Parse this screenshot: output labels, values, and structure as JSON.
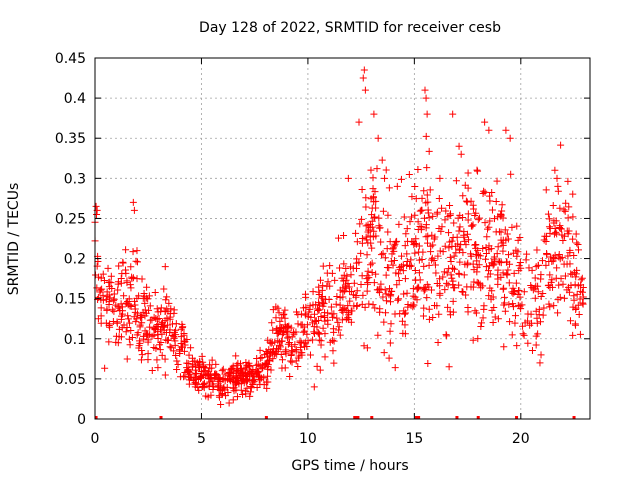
{
  "chart_data": {
    "type": "scatter",
    "title": "Day 128 of 2022, SRMTID for receiver cesb",
    "xlabel": "GPS time / hours",
    "ylabel": "SRMTID / TECUs",
    "xlim": [
      0,
      23.25
    ],
    "ylim": [
      0,
      0.45
    ],
    "grid": true,
    "marker": "+",
    "color": "#ff0000",
    "x_ticks": [
      0,
      5,
      10,
      15,
      20
    ],
    "x_tick_labels": [
      "0",
      "5",
      "10",
      "15",
      "20"
    ],
    "y_ticks": [
      0,
      0.05,
      0.1,
      0.15,
      0.2,
      0.25,
      0.3,
      0.35,
      0.4,
      0.45
    ],
    "y_tick_labels": [
      "0",
      "0.05",
      "0.1",
      "0.15",
      "0.2",
      "0.25",
      "0.3",
      "0.35",
      "0.4",
      "0.45"
    ],
    "series": [
      {
        "name": "SRMTID",
        "trend": [
          [
            0.0,
            0.2
          ],
          [
            0.3,
            0.15
          ],
          [
            0.6,
            0.14
          ],
          [
            1.0,
            0.13
          ],
          [
            1.4,
            0.15
          ],
          [
            1.8,
            0.16
          ],
          [
            2.2,
            0.12
          ],
          [
            2.6,
            0.11
          ],
          [
            3.0,
            0.11
          ],
          [
            3.4,
            0.12
          ],
          [
            3.8,
            0.1
          ],
          [
            4.2,
            0.08
          ],
          [
            4.6,
            0.06
          ],
          [
            5.0,
            0.055
          ],
          [
            5.5,
            0.05
          ],
          [
            6.0,
            0.045
          ],
          [
            6.5,
            0.05
          ],
          [
            7.0,
            0.05
          ],
          [
            7.5,
            0.055
          ],
          [
            8.0,
            0.06
          ],
          [
            8.5,
            0.11
          ],
          [
            9.0,
            0.1
          ],
          [
            9.5,
            0.1
          ],
          [
            10.0,
            0.12
          ],
          [
            10.5,
            0.13
          ],
          [
            11.0,
            0.14
          ],
          [
            11.5,
            0.15
          ],
          [
            12.0,
            0.16
          ],
          [
            12.5,
            0.19
          ],
          [
            13.0,
            0.22
          ],
          [
            13.5,
            0.2
          ],
          [
            14.0,
            0.18
          ],
          [
            14.5,
            0.19
          ],
          [
            15.0,
            0.2
          ],
          [
            15.5,
            0.22
          ],
          [
            16.0,
            0.2
          ],
          [
            16.5,
            0.19
          ],
          [
            17.0,
            0.2
          ],
          [
            17.5,
            0.22
          ],
          [
            18.0,
            0.21
          ],
          [
            18.5,
            0.2
          ],
          [
            19.0,
            0.2
          ],
          [
            19.5,
            0.18
          ],
          [
            20.0,
            0.17
          ],
          [
            20.5,
            0.15
          ],
          [
            21.0,
            0.16
          ],
          [
            21.5,
            0.2
          ],
          [
            22.0,
            0.22
          ],
          [
            22.5,
            0.18
          ],
          [
            22.9,
            0.17
          ]
        ],
        "outliers": [
          [
            0.05,
            0.265
          ],
          [
            0.1,
            0.26
          ],
          [
            1.8,
            0.27
          ],
          [
            1.85,
            0.26
          ],
          [
            3.3,
            0.19
          ],
          [
            8.3,
            0.12
          ],
          [
            12.4,
            0.37
          ],
          [
            12.6,
            0.425
          ],
          [
            12.65,
            0.435
          ],
          [
            12.7,
            0.41
          ],
          [
            13.1,
            0.38
          ],
          [
            13.3,
            0.35
          ],
          [
            13.6,
            0.3
          ],
          [
            15.5,
            0.41
          ],
          [
            15.55,
            0.4
          ],
          [
            15.6,
            0.38
          ],
          [
            16.8,
            0.38
          ],
          [
            17.1,
            0.34
          ],
          [
            17.2,
            0.33
          ],
          [
            18.3,
            0.37
          ],
          [
            18.5,
            0.36
          ],
          [
            19.3,
            0.36
          ],
          [
            19.5,
            0.35
          ],
          [
            21.6,
            0.31
          ],
          [
            21.7,
            0.3
          ],
          [
            20.9,
            0.07
          ],
          [
            20.95,
            0.08
          ],
          [
            19.2,
            0.09
          ],
          [
            5.9,
            0.018
          ],
          [
            6.3,
            0.02
          ],
          [
            10.3,
            0.04
          ],
          [
            11.9,
            0.3
          ],
          [
            14.2,
            0.29
          ],
          [
            16.2,
            0.3
          ]
        ]
      }
    ],
    "baseline_markers_x": [
      0.05,
      3.1,
      8.05,
      12.2,
      12.3,
      12.35,
      13.0,
      15.1,
      15.2,
      17.0,
      18.0,
      19.8,
      22.5
    ]
  }
}
